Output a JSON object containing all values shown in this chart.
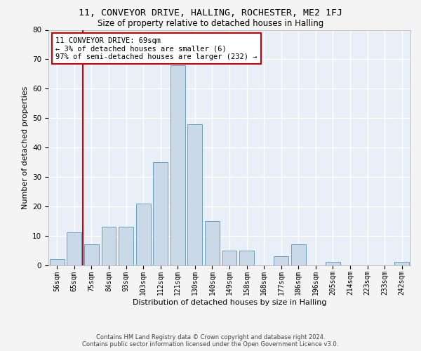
{
  "title1": "11, CONVEYOR DRIVE, HALLING, ROCHESTER, ME2 1FJ",
  "title2": "Size of property relative to detached houses in Halling",
  "xlabel": "Distribution of detached houses by size in Halling",
  "ylabel": "Number of detached properties",
  "bar_labels": [
    "56sqm",
    "65sqm",
    "75sqm",
    "84sqm",
    "93sqm",
    "103sqm",
    "112sqm",
    "121sqm",
    "130sqm",
    "140sqm",
    "149sqm",
    "158sqm",
    "168sqm",
    "177sqm",
    "186sqm",
    "196sqm",
    "205sqm",
    "214sqm",
    "223sqm",
    "233sqm",
    "242sqm"
  ],
  "bar_values": [
    2,
    11,
    7,
    13,
    13,
    21,
    35,
    68,
    48,
    15,
    5,
    5,
    0,
    3,
    7,
    0,
    1,
    0,
    0,
    0,
    1
  ],
  "bar_color": "#c9d9e8",
  "bar_edge_color": "#6a9fc0",
  "background_color": "#e8eff7",
  "grid_color": "#ffffff",
  "annotation_text": "11 CONVEYOR DRIVE: 69sqm\n← 3% of detached houses are smaller (6)\n97% of semi-detached houses are larger (232) →",
  "annotation_box_color": "#ffffff",
  "annotation_box_edge_color": "#cc0000",
  "redline_color": "#cc0000",
  "footer": "Contains HM Land Registry data © Crown copyright and database right 2024.\nContains public sector information licensed under the Open Government Licence v3.0.",
  "ylim": [
    0,
    80
  ],
  "title1_fontsize": 9.5,
  "title2_fontsize": 8.5,
  "xlabel_fontsize": 8,
  "ylabel_fontsize": 8,
  "tick_fontsize": 7,
  "annotation_fontsize": 7.5,
  "footer_fontsize": 6
}
